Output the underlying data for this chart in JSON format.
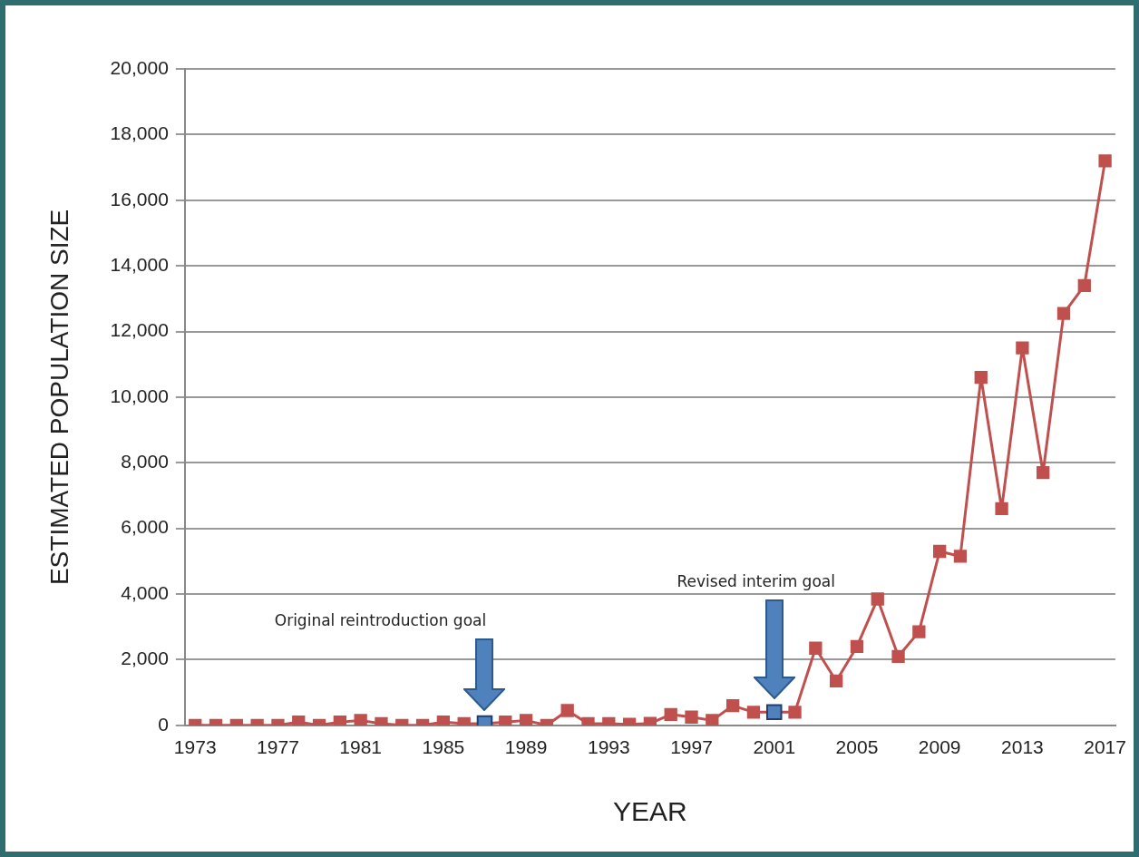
{
  "chart_data": {
    "type": "line",
    "xlabel": "YEAR",
    "ylabel": "ESTIMATED POPULATION SIZE",
    "categories": [
      "1973",
      null,
      null,
      null,
      "1977",
      null,
      null,
      null,
      "1981",
      null,
      null,
      null,
      "1985",
      null,
      null,
      null,
      "1989",
      null,
      null,
      null,
      "1993",
      null,
      null,
      null,
      "1997",
      null,
      null,
      null,
      "2001",
      null,
      null,
      null,
      "2005",
      null,
      null,
      null,
      "2009",
      null,
      null,
      null,
      "2013",
      null,
      null,
      null,
      "2017"
    ],
    "series": [
      {
        "color": "#c0504d",
        "values": [
          0,
          0,
          0,
          0,
          0,
          100,
          0,
          100,
          150,
          50,
          0,
          0,
          100,
          50,
          50,
          100,
          150,
          0,
          450,
          50,
          50,
          30,
          60,
          330,
          250,
          150,
          600,
          400,
          400,
          400,
          2350,
          1350,
          2400,
          3850,
          2100,
          2850,
          5300,
          5150,
          10600,
          6600,
          11500,
          7700,
          12550,
          13400,
          17200
        ]
      },
      {
        "type": "scatter",
        "color": "#4f81bd",
        "values": [
          null,
          null,
          null,
          null,
          null,
          null,
          null,
          null,
          null,
          null,
          null,
          null,
          null,
          null,
          60,
          null,
          null,
          null,
          null,
          null,
          null,
          null,
          null,
          null,
          null,
          null,
          null,
          null,
          400,
          null,
          null,
          null,
          null,
          null,
          null,
          null,
          null,
          null,
          null,
          null,
          null,
          null,
          null,
          null,
          null
        ]
      }
    ],
    "annotations": [
      "Original reintroduction goal",
      "Revised interim goal"
    ],
    "ylim": [
      0,
      20000
    ],
    "yticks": [
      {
        "value": 0,
        "label": "0"
      },
      {
        "value": 2000,
        "label": "2,000"
      },
      {
        "value": 4000,
        "label": "4,000"
      },
      {
        "value": 6000,
        "label": "6,000"
      },
      {
        "value": 8000,
        "label": "8,000"
      },
      {
        "value": 10000,
        "label": "10,000"
      },
      {
        "value": 12000,
        "label": "12,000"
      },
      {
        "value": 14000,
        "label": "14,000"
      },
      {
        "value": 16000,
        "label": "16,000"
      },
      {
        "value": 18000,
        "label": "18,000"
      },
      {
        "value": 20000,
        "label": "20,000"
      }
    ],
    "grid": "y",
    "marker": "square",
    "line_style": "solid"
  }
}
